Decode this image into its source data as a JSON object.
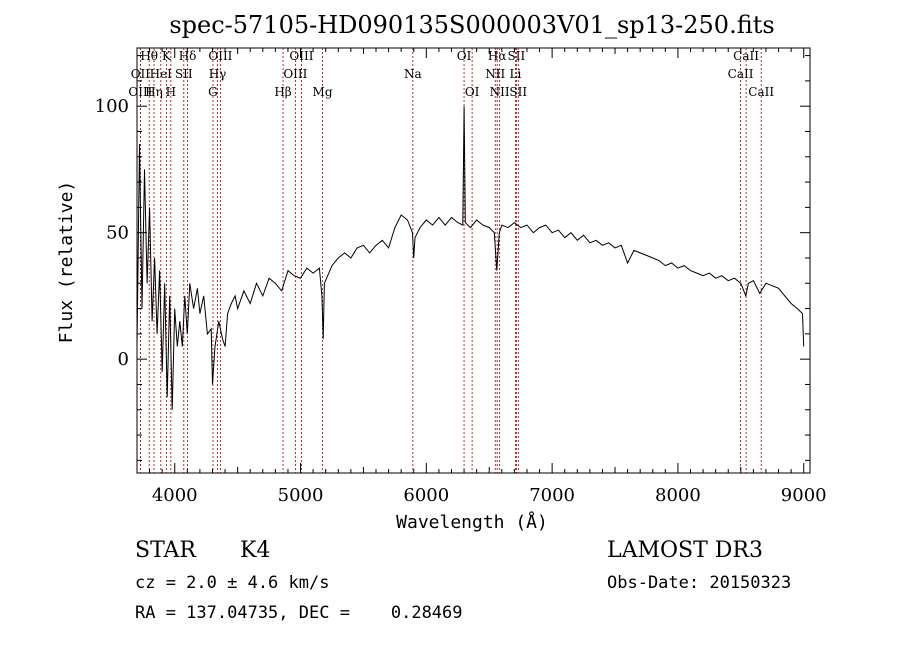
{
  "chart_data": {
    "type": "line",
    "title": "spec-57105-HD090135S000003V01_sp13-250.fits",
    "xlabel": "Wavelength (Å)",
    "ylabel": "Flux (relative)",
    "xlim": [
      3700,
      9050
    ],
    "ylim": [
      -45,
      123
    ],
    "xticks": [
      4000,
      5000,
      6000,
      7000,
      8000,
      9000
    ],
    "yticks": [
      0,
      50,
      100
    ],
    "series": [
      {
        "name": "flux",
        "points": [
          [
            3700,
            5
          ],
          [
            3720,
            85
          ],
          [
            3740,
            20
          ],
          [
            3760,
            75
          ],
          [
            3780,
            30
          ],
          [
            3800,
            60
          ],
          [
            3820,
            15
          ],
          [
            3840,
            40
          ],
          [
            3860,
            10
          ],
          [
            3880,
            35
          ],
          [
            3900,
            -5
          ],
          [
            3920,
            30
          ],
          [
            3940,
            -15
          ],
          [
            3960,
            25
          ],
          [
            3980,
            -20
          ],
          [
            4000,
            20
          ],
          [
            4020,
            5
          ],
          [
            4040,
            15
          ],
          [
            4060,
            5
          ],
          [
            4080,
            25
          ],
          [
            4100,
            10
          ],
          [
            4120,
            30
          ],
          [
            4150,
            20
          ],
          [
            4180,
            28
          ],
          [
            4200,
            18
          ],
          [
            4230,
            25
          ],
          [
            4260,
            10
          ],
          [
            4290,
            12
          ],
          [
            4300,
            -10
          ],
          [
            4320,
            5
          ],
          [
            4350,
            15
          ],
          [
            4380,
            8
          ],
          [
            4400,
            5
          ],
          [
            4420,
            18
          ],
          [
            4450,
            22
          ],
          [
            4480,
            25
          ],
          [
            4500,
            20
          ],
          [
            4550,
            27
          ],
          [
            4600,
            22
          ],
          [
            4650,
            30
          ],
          [
            4700,
            25
          ],
          [
            4750,
            32
          ],
          [
            4800,
            30
          ],
          [
            4850,
            27
          ],
          [
            4900,
            35
          ],
          [
            4950,
            33
          ],
          [
            5000,
            32
          ],
          [
            5050,
            36
          ],
          [
            5100,
            34
          ],
          [
            5150,
            36
          ],
          [
            5170,
            25
          ],
          [
            5180,
            8
          ],
          [
            5190,
            30
          ],
          [
            5250,
            37
          ],
          [
            5300,
            40
          ],
          [
            5350,
            42
          ],
          [
            5400,
            40
          ],
          [
            5450,
            44
          ],
          [
            5500,
            45
          ],
          [
            5550,
            42
          ],
          [
            5600,
            45
          ],
          [
            5650,
            47
          ],
          [
            5700,
            44
          ],
          [
            5750,
            52
          ],
          [
            5800,
            57
          ],
          [
            5850,
            55
          ],
          [
            5890,
            50
          ],
          [
            5900,
            40
          ],
          [
            5910,
            48
          ],
          [
            5950,
            52
          ],
          [
            6000,
            55
          ],
          [
            6050,
            53
          ],
          [
            6100,
            56
          ],
          [
            6150,
            53
          ],
          [
            6200,
            56
          ],
          [
            6250,
            54
          ],
          [
            6290,
            53
          ],
          [
            6300,
            100
          ],
          [
            6310,
            54
          ],
          [
            6350,
            52
          ],
          [
            6400,
            55
          ],
          [
            6450,
            53
          ],
          [
            6500,
            52
          ],
          [
            6540,
            50
          ],
          [
            6560,
            35
          ],
          [
            6580,
            50
          ],
          [
            6600,
            53
          ],
          [
            6650,
            52
          ],
          [
            6700,
            54
          ],
          [
            6750,
            52
          ],
          [
            6800,
            53
          ],
          [
            6850,
            50
          ],
          [
            6900,
            52
          ],
          [
            6950,
            53
          ],
          [
            7000,
            50
          ],
          [
            7050,
            51
          ],
          [
            7100,
            48
          ],
          [
            7150,
            50
          ],
          [
            7200,
            47
          ],
          [
            7250,
            49
          ],
          [
            7300,
            46
          ],
          [
            7350,
            47
          ],
          [
            7400,
            45
          ],
          [
            7450,
            46
          ],
          [
            7500,
            44
          ],
          [
            7550,
            45
          ],
          [
            7600,
            38
          ],
          [
            7650,
            43
          ],
          [
            7700,
            42
          ],
          [
            7750,
            41
          ],
          [
            7800,
            40
          ],
          [
            7850,
            39
          ],
          [
            7900,
            37
          ],
          [
            7950,
            38
          ],
          [
            8000,
            36
          ],
          [
            8050,
            37
          ],
          [
            8100,
            35
          ],
          [
            8150,
            34
          ],
          [
            8200,
            33
          ],
          [
            8250,
            34
          ],
          [
            8300,
            32
          ],
          [
            8350,
            33
          ],
          [
            8400,
            31
          ],
          [
            8450,
            32
          ],
          [
            8500,
            30
          ],
          [
            8540,
            25
          ],
          [
            8560,
            30
          ],
          [
            8600,
            31
          ],
          [
            8650,
            26
          ],
          [
            8700,
            30
          ],
          [
            8750,
            29
          ],
          [
            8800,
            28
          ],
          [
            8850,
            25
          ],
          [
            8900,
            22
          ],
          [
            8950,
            20
          ],
          [
            8990,
            18
          ],
          [
            9000,
            5
          ]
        ]
      }
    ],
    "line_markers": [
      {
        "label": "OII",
        "wavelength": 3727,
        "row": 1
      },
      {
        "label": "OIII",
        "wavelength": 3727,
        "row": 2
      },
      {
        "label": "Hθ",
        "wavelength": 3797,
        "row": 0
      },
      {
        "label": "Hη",
        "wavelength": 3835,
        "row": 2
      },
      {
        "label": "HeI",
        "wavelength": 3889,
        "row": 1
      },
      {
        "label": "K",
        "wavelength": 3934,
        "row": 0
      },
      {
        "label": "H",
        "wavelength": 3969,
        "row": 2
      },
      {
        "label": "SII",
        "wavelength": 4072,
        "row": 1
      },
      {
        "label": "Hδ",
        "wavelength": 4102,
        "row": 0
      },
      {
        "label": "G",
        "wavelength": 4304,
        "row": 2
      },
      {
        "label": "Hγ",
        "wavelength": 4340,
        "row": 1
      },
      {
        "label": "OIII",
        "wavelength": 4363,
        "row": 0
      },
      {
        "label": "Hβ",
        "wavelength": 4861,
        "row": 2
      },
      {
        "label": "OIII",
        "wavelength": 4959,
        "row": 1
      },
      {
        "label": "OIII",
        "wavelength": 5007,
        "row": 0
      },
      {
        "label": "Mg",
        "wavelength": 5175,
        "row": 2
      },
      {
        "label": "Na",
        "wavelength": 5893,
        "row": 1
      },
      {
        "label": "OI",
        "wavelength": 6300,
        "row": 0
      },
      {
        "label": "OI",
        "wavelength": 6364,
        "row": 2
      },
      {
        "label": "NII",
        "wavelength": 6548,
        "row": 1
      },
      {
        "label": "Hα",
        "wavelength": 6563,
        "row": 0
      },
      {
        "label": "NII",
        "wavelength": 6583,
        "row": 2
      },
      {
        "label": "Li",
        "wavelength": 6708,
        "row": 1
      },
      {
        "label": "SII",
        "wavelength": 6716,
        "row": 0
      },
      {
        "label": "SII",
        "wavelength": 6731,
        "row": 2
      },
      {
        "label": "CaII",
        "wavelength": 8498,
        "row": 1
      },
      {
        "label": "CaII",
        "wavelength": 8542,
        "row": 0
      },
      {
        "label": "CaII",
        "wavelength": 8662,
        "row": 2
      }
    ]
  },
  "info": {
    "object_class": "STAR",
    "subclass": "K4",
    "redshift_text": "cz = 2.0 ± 4.6 km/s",
    "coords_text": "RA = 137.04735, DEC =    0.28469",
    "survey": "LAMOST DR3",
    "obs_date": "Obs-Date: 20150323"
  }
}
